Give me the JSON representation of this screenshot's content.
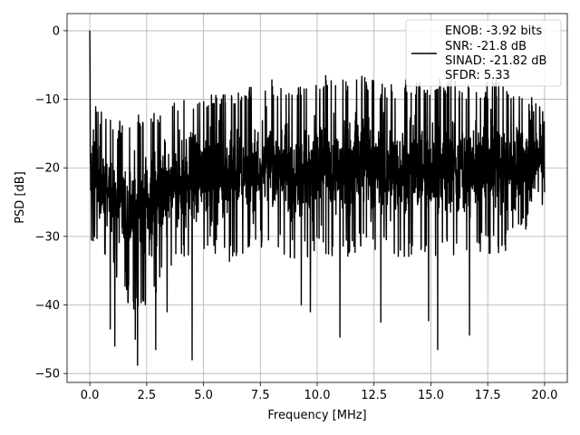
{
  "chart_data": {
    "type": "line",
    "title": "",
    "xlabel": "Frequency [MHz]",
    "ylabel": "PSD [dB]",
    "xlim": [
      -1,
      21
    ],
    "ylim": [
      -51.3,
      2.5
    ],
    "xticks": [
      0,
      2.5,
      5,
      7.5,
      10,
      12.5,
      15,
      17.5,
      20
    ],
    "xtick_labels": [
      "0.0",
      "2.5",
      "5.0",
      "7.5",
      "10.0",
      "12.5",
      "15.0",
      "17.5",
      "20.0"
    ],
    "yticks": [
      0,
      -10,
      -20,
      -30,
      -40,
      -50
    ],
    "ytick_labels": [
      "0",
      "−10",
      "−20",
      "−30",
      "−40",
      "−50"
    ],
    "grid": true,
    "legend_position": "top-right",
    "line_color": "#000000",
    "legend_lines": [
      "ENOB: -3.92 bits",
      "SNR: -21.8 dB",
      "SINAD: -21.82 dB",
      "SFDR: 5.33"
    ],
    "series": [
      {
        "x_range": [
          0,
          20
        ],
        "peak": {
          "x": 0.0,
          "y": 0
        },
        "envelope_x": [
          0,
          1,
          2,
          3,
          4,
          5,
          6,
          7,
          8,
          9,
          10,
          11,
          12,
          13,
          14,
          15,
          16,
          17,
          18,
          19,
          20
        ],
        "envelope_upper": [
          -10,
          -13,
          -12,
          -11,
          -10,
          -9,
          -9,
          -8,
          -7,
          -8,
          -6,
          -7,
          -6,
          -8,
          -7,
          -7,
          -7,
          -8,
          -7,
          -9,
          -10
        ],
        "envelope_lower": [
          -31,
          -35,
          -42,
          -38,
          -34,
          -32,
          -34,
          -33,
          -31,
          -34,
          -33,
          -34,
          -32,
          -33,
          -34,
          -33,
          -33,
          -32,
          -33,
          -30,
          -26
        ],
        "notable_minima": [
          {
            "x": 0.9,
            "y": -43.5
          },
          {
            "x": 1.1,
            "y": -46
          },
          {
            "x": 2.0,
            "y": -45
          },
          {
            "x": 2.1,
            "y": -48.8
          },
          {
            "x": 2.9,
            "y": -46.5
          },
          {
            "x": 3.4,
            "y": -41
          },
          {
            "x": 4.5,
            "y": -48
          },
          {
            "x": 9.3,
            "y": -40
          },
          {
            "x": 9.7,
            "y": -41
          },
          {
            "x": 11.0,
            "y": -44.7
          },
          {
            "x": 12.8,
            "y": -42.5
          },
          {
            "x": 14.9,
            "y": -42.3
          },
          {
            "x": 15.3,
            "y": -46.5
          },
          {
            "x": 16.7,
            "y": -44.4
          }
        ]
      }
    ]
  }
}
